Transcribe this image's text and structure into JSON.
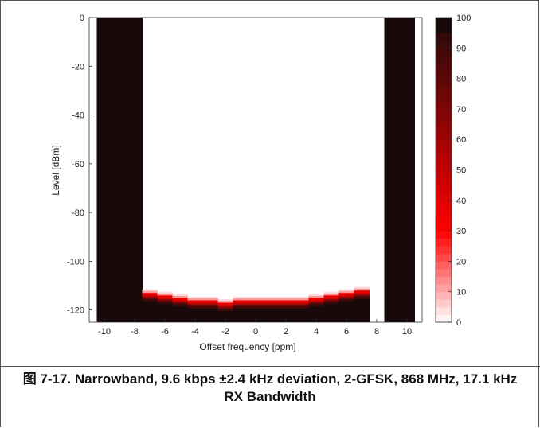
{
  "caption": {
    "prefix": "图 7-17.",
    "text": "Narrowband, 9.6 kbps ±2.4 kHz deviation, 2-GFSK, 868 MHz, 17.1 kHz RX Bandwidth"
  },
  "chart_data": {
    "type": "heatmap",
    "xlabel": "Offset frequency [ppm]",
    "ylabel": "Level [dBm]",
    "xlim": [
      -11,
      11
    ],
    "ylim": [
      -125,
      0
    ],
    "xticks": [
      -10,
      -8,
      -6,
      -4,
      -2,
      0,
      2,
      4,
      6,
      8,
      10
    ],
    "yticks": [
      0,
      -20,
      -40,
      -60,
      -80,
      -100,
      -120
    ],
    "colorbar": {
      "min": 0,
      "max": 100,
      "ticks": [
        0,
        10,
        20,
        30,
        40,
        50,
        60,
        70,
        80,
        90,
        100
      ],
      "scale": "white → red → black"
    },
    "x": [
      -10,
      -9,
      -8,
      -7,
      -6,
      -5,
      -4,
      -3,
      -2,
      -1,
      0,
      1,
      2,
      3,
      4,
      5,
      6,
      7,
      8,
      9,
      10
    ],
    "ber_100_offsets": [
      -10,
      -9,
      -8,
      9,
      10
    ],
    "sensitivity_dbm": [
      -113,
      -114,
      -115,
      -116,
      -116,
      -117,
      -116,
      -116,
      -116,
      -116,
      -116,
      -115,
      -114,
      -113,
      -112
    ],
    "sensitivity_offsets": [
      -7,
      -6,
      -5,
      -4,
      -3,
      -2,
      -1,
      0,
      1,
      2,
      3,
      4,
      5,
      6,
      7
    ]
  }
}
